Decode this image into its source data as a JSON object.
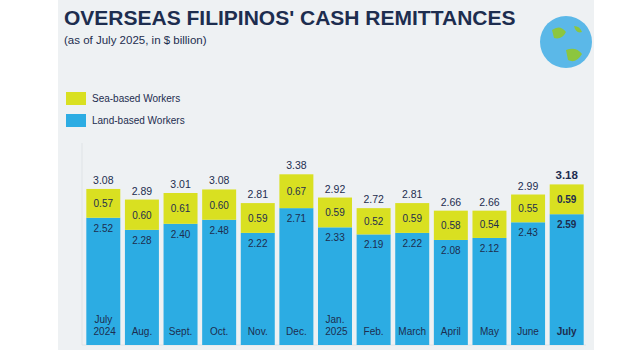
{
  "chart_data": {
    "type": "bar",
    "title": "OVERSEAS FILIPINOS' CASH REMITTANCES",
    "subtitle": "(as of July 2025, in $ billion)",
    "categories": [
      "July 2024",
      "Aug.",
      "Sept.",
      "Oct.",
      "Nov.",
      "Dec.",
      "Jan. 2025",
      "Feb.",
      "March",
      "April",
      "May",
      "June",
      "July"
    ],
    "series": [
      {
        "name": "Land-based Workers",
        "color": "#2cace3",
        "values": [
          2.52,
          2.28,
          2.4,
          2.48,
          2.22,
          2.71,
          2.33,
          2.19,
          2.22,
          2.08,
          2.12,
          2.43,
          2.59
        ],
        "value_labels": [
          "2.52",
          "2.28",
          "2.40",
          "2.48",
          "2.22",
          "2.71",
          "2.33",
          "2.19",
          "2.22",
          "2.08",
          "2.12",
          "2.43",
          "2.59"
        ]
      },
      {
        "name": "Sea-based Workers",
        "color": "#d9e021",
        "values": [
          0.57,
          0.6,
          0.61,
          0.6,
          0.59,
          0.67,
          0.59,
          0.52,
          0.59,
          0.58,
          0.54,
          0.55,
          0.59
        ],
        "value_labels": [
          "0.57",
          "0.60",
          "0.61",
          "0.60",
          "0.59",
          "0.67",
          "0.59",
          "0.52",
          "0.59",
          "0.58",
          "0.54",
          "0.55",
          "0.59"
        ]
      }
    ],
    "totals": [
      3.08,
      2.89,
      3.01,
      3.08,
      2.81,
      3.38,
      2.92,
      2.72,
      2.81,
      2.66,
      2.66,
      2.99,
      3.18
    ],
    "ylim": [
      0,
      4
    ],
    "stacked": true,
    "data_labels": true,
    "tick_labels": false,
    "grid": false,
    "legend": "upper left"
  }
}
